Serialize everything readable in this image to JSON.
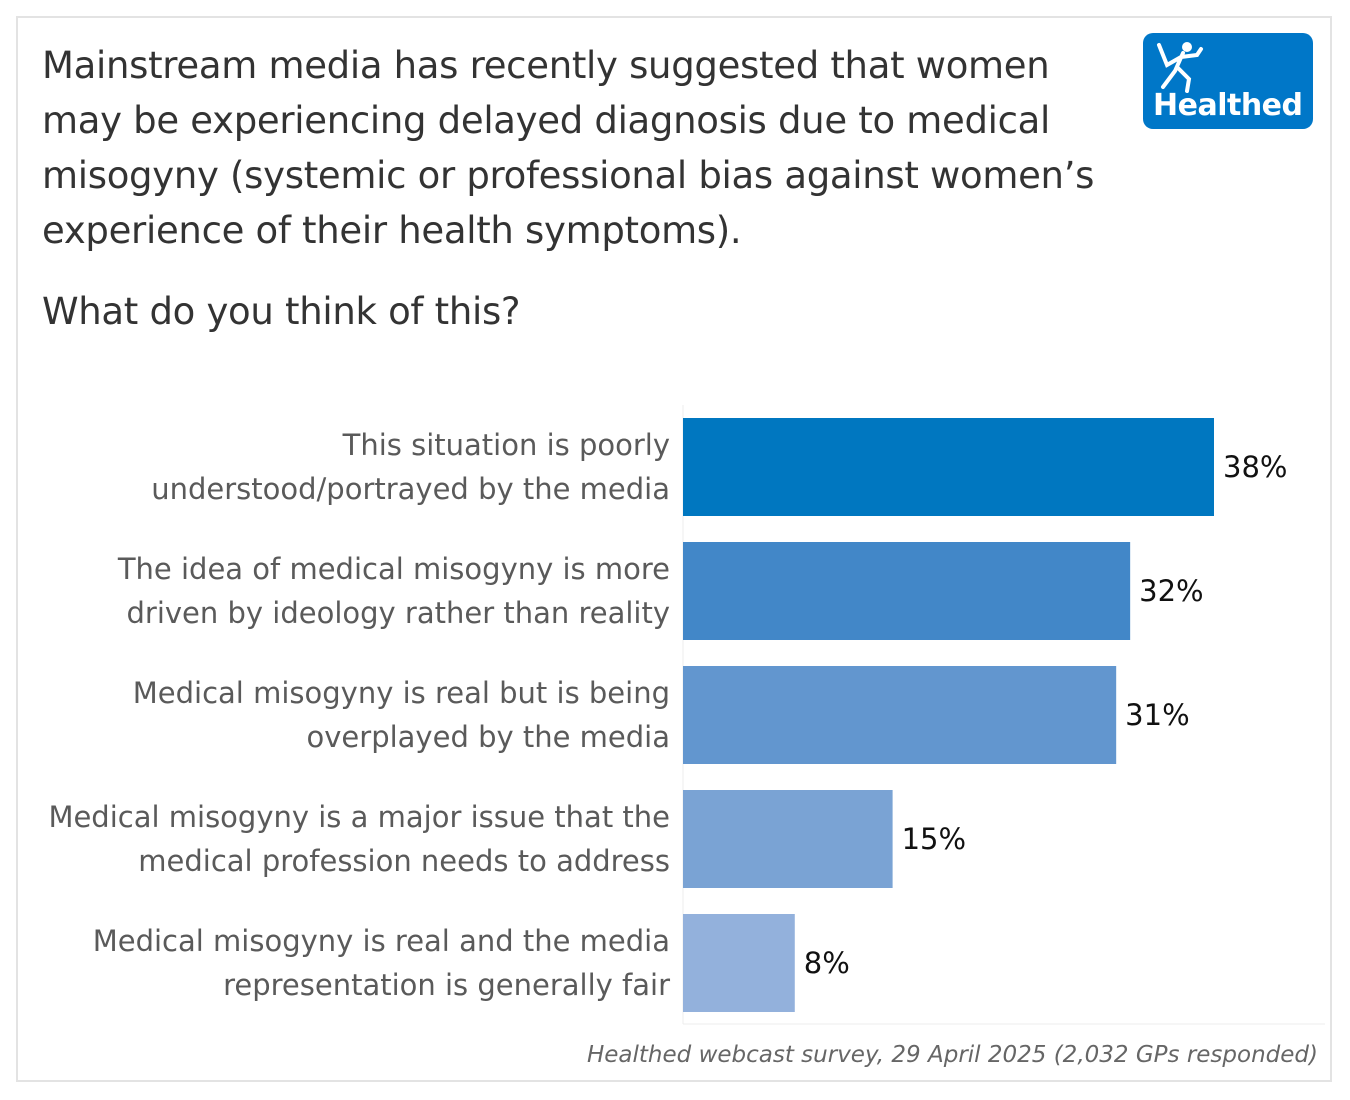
{
  "header": {
    "title": "Mainstream media has recently suggested that women may be experiencing delayed diagnosis due to medical misogyny (systemic or professional bias against women’s experience of their health symptoms).",
    "question": "What do you think of this?",
    "logo_text": "Healthed"
  },
  "chart_data": {
    "type": "bar",
    "orientation": "horizontal",
    "categories": [
      [
        "This situation is poorly",
        "understood/portrayed by the media"
      ],
      [
        "The idea of medical misogyny is more",
        "driven by ideology rather than reality"
      ],
      [
        "Medical misogyny is real but is being",
        "overplayed by the media"
      ],
      [
        "Medical misogyny is a major issue that the",
        "medical profession needs to address"
      ],
      [
        "Medical misogyny is real and the media",
        "representation is generally fair"
      ]
    ],
    "values": [
      38,
      32,
      31,
      15,
      8
    ],
    "value_labels": [
      "38%",
      "32%",
      "31%",
      "15%",
      "8%"
    ],
    "colors": [
      "#0077c0",
      "#4287c8",
      "#6296cf",
      "#7aa3d4",
      "#93b1dc"
    ],
    "xlim": [
      0,
      38
    ],
    "grid": false
  },
  "footer": {
    "source": "Healthed webcast survey, 29 April 2025 (2,032 GPs responded)"
  }
}
